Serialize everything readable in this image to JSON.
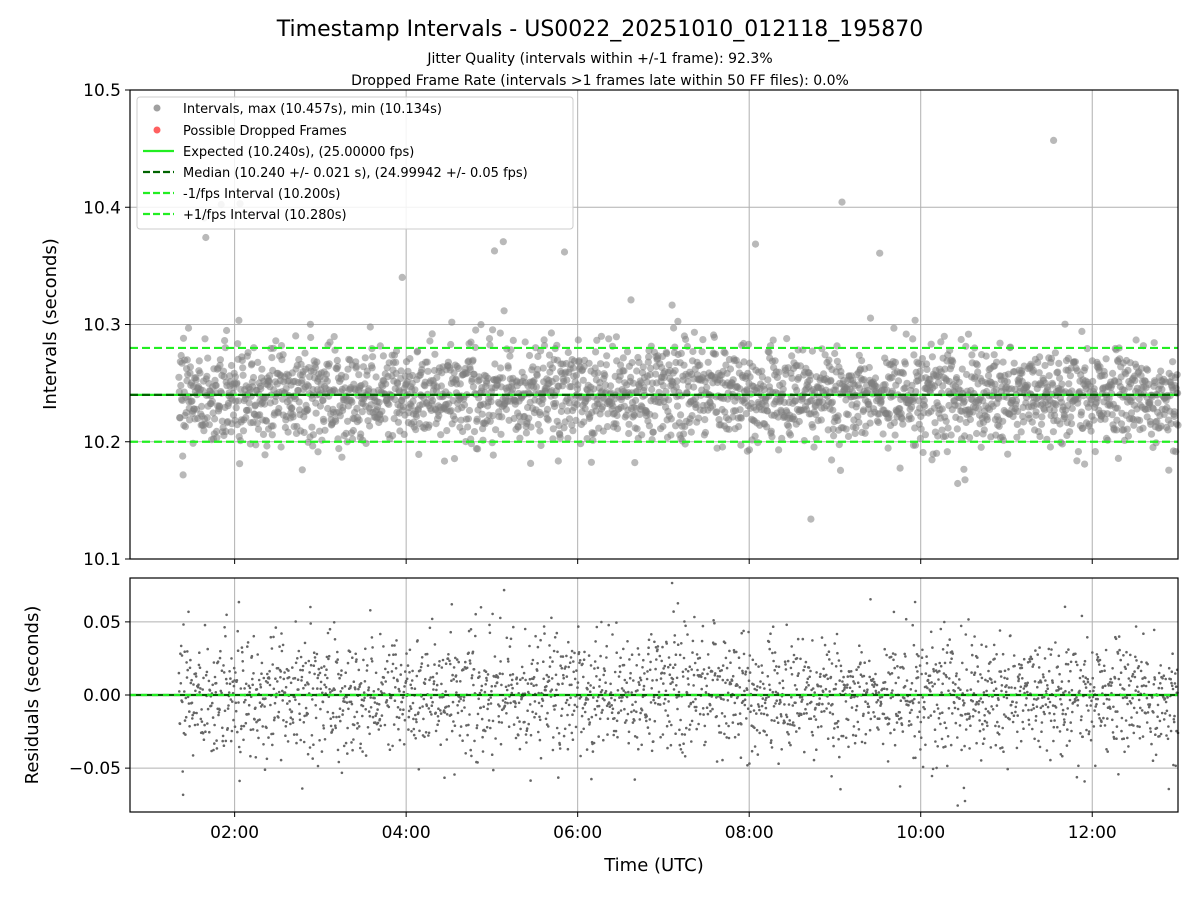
{
  "chart_data": {
    "type": "scatter",
    "title": "Timestamp Intervals - US0022_20251010_012118_195870",
    "subtitle_jitter": "Jitter Quality (intervals within +/-1 frame): 92.3%",
    "subtitle_dropped": "Dropped Frame Rate (intervals >1 frames late within 50 FF files): 0.0%",
    "xlabel": "Time (UTC)",
    "x_tick_labels": [
      "02:00",
      "04:00",
      "06:00",
      "08:00",
      "10:00",
      "12:00"
    ],
    "x_ticks_hours": [
      2,
      4,
      6,
      8,
      10,
      12
    ],
    "xlim_hours": [
      0.78,
      13.0
    ],
    "data_x_range_hours": [
      1.35,
      13.0
    ],
    "colors": {
      "intervals": "#808080",
      "dropped": "#ff6060",
      "expected": "#22ee22",
      "median": "#006400",
      "fps_band": "#22ee22",
      "residuals": "#666666"
    },
    "panels": {
      "intervals": {
        "ylabel": "Intervals (seconds)",
        "ylim": [
          10.1,
          10.5
        ],
        "y_ticks": [
          10.1,
          10.2,
          10.3,
          10.4,
          10.5
        ],
        "y_tick_labels": [
          "10.1",
          "10.2",
          "10.3",
          "10.4",
          "10.5"
        ],
        "expected": 10.24,
        "median": 10.24,
        "minus_fps_interval": 10.2,
        "plus_fps_interval": 10.28,
        "max": 10.457,
        "min": 10.134,
        "spread_sd": 0.021,
        "n_points": 2600,
        "dropped_frames": []
      },
      "residuals": {
        "ylabel": "Residuals (seconds)",
        "ylim": [
          -0.08,
          0.08
        ],
        "y_ticks": [
          -0.05,
          0.0,
          0.05
        ],
        "y_tick_labels": [
          "−0.05",
          "0.00",
          "0.05"
        ],
        "zero_line": 0.0
      }
    },
    "legend": {
      "location": "upper-left",
      "entries": [
        {
          "label": "Intervals, max (10.457s), min (10.134s)",
          "kind": "marker",
          "color": "#a0a0a0"
        },
        {
          "label": "Possible Dropped Frames",
          "kind": "marker",
          "color": "#ff6060"
        },
        {
          "label": "Expected (10.240s), (25.00000 fps)",
          "kind": "solid",
          "color": "#22ee22"
        },
        {
          "label": "Median (10.240 +/- 0.021 s), (24.99942 +/- 0.05 fps)",
          "kind": "dashed",
          "color": "#006400"
        },
        {
          "label": "-1/fps Interval (10.200s)",
          "kind": "dashed",
          "color": "#22ee22"
        },
        {
          "label": "+1/fps Interval (10.280s)",
          "kind": "dashed",
          "color": "#22ee22"
        }
      ]
    }
  }
}
